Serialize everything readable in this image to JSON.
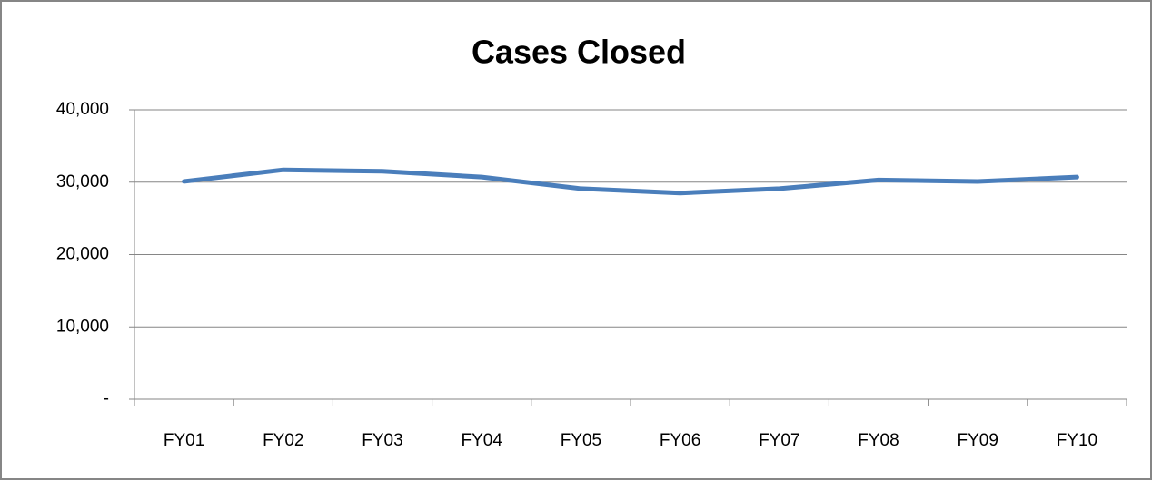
{
  "chart_data": {
    "type": "line",
    "title": "Cases Closed",
    "categories": [
      "FY01",
      "FY02",
      "FY03",
      "FY04",
      "FY05",
      "FY06",
      "FY07",
      "FY08",
      "FY09",
      "FY10"
    ],
    "series": [
      {
        "name": "Cases Closed",
        "color": "#4a7ebb",
        "values": [
          30100,
          31700,
          31500,
          30700,
          29100,
          28500,
          29100,
          30300,
          30100,
          30700
        ]
      }
    ],
    "ylim": [
      0,
      40000
    ],
    "yticks": [
      {
        "value": 0,
        "label": "-"
      },
      {
        "value": 10000,
        "label": "10,000"
      },
      {
        "value": 20000,
        "label": "20,000"
      },
      {
        "value": 30000,
        "label": "30,000"
      },
      {
        "value": 40000,
        "label": "40,000"
      }
    ],
    "grid": true
  }
}
